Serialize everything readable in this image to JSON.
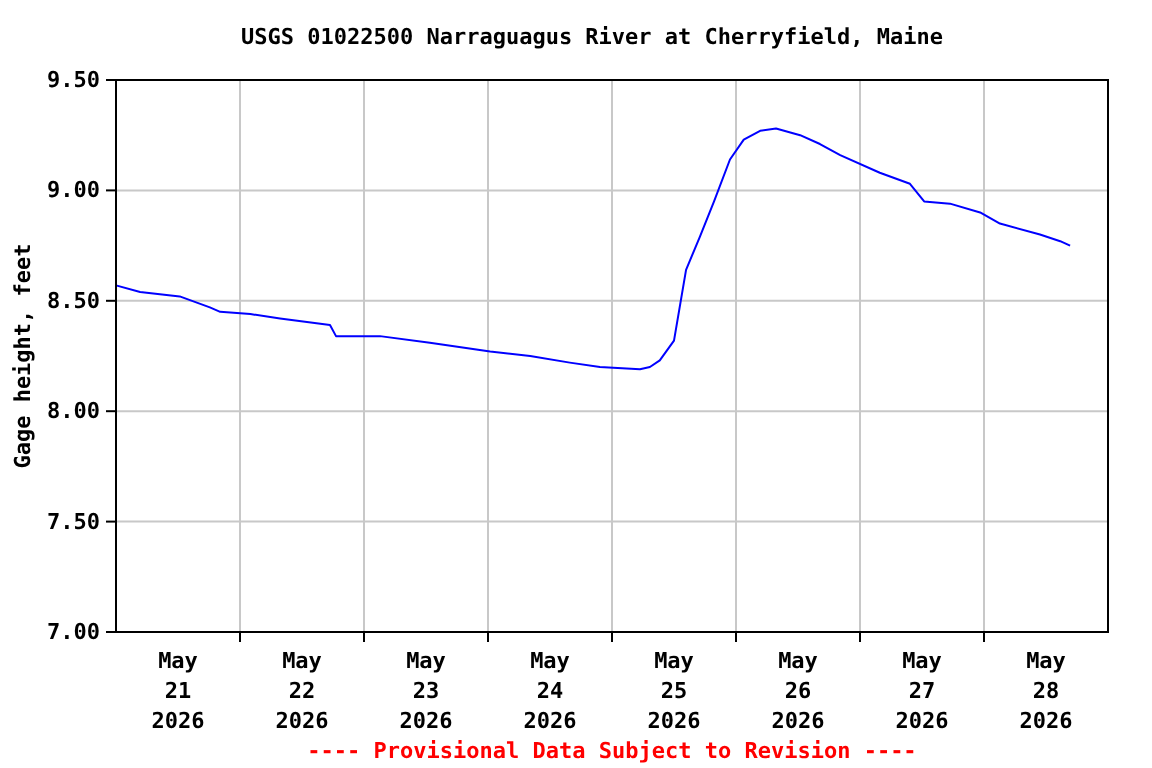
{
  "chart_data": {
    "type": "line",
    "title": "USGS 01022500 Narraguagus River at Cherryfield, Maine",
    "ylabel": "Gage height, feet",
    "annotations": [
      "---- Provisional Data Subject to Revision ----"
    ],
    "x": [
      "2026-05-21T00:00",
      "2026-05-21T04:40",
      "2026-05-21T12:20",
      "2026-05-21T18:10",
      "2026-05-21T20:10",
      "2026-05-22T02:00",
      "2026-05-22T07:45",
      "2026-05-22T17:25",
      "2026-05-22T18:35",
      "2026-05-23T03:05",
      "2026-05-23T12:45",
      "2026-05-24T00:25",
      "2026-05-24T08:10",
      "2026-05-24T15:50",
      "2026-05-24T21:40",
      "2026-05-25T05:25",
      "2026-05-25T07:20",
      "2026-05-25T09:15",
      "2026-05-25T12:00",
      "2026-05-25T14:20",
      "2026-05-25T17:00",
      "2026-05-25T19:45",
      "2026-05-25T22:50",
      "2026-05-26T01:30",
      "2026-05-26T04:40",
      "2026-05-26T07:45",
      "2026-05-26T12:25",
      "2026-05-26T16:15",
      "2026-05-26T20:10",
      "2026-05-27T03:50",
      "2026-05-27T09:40",
      "2026-05-27T12:25",
      "2026-05-27T17:25",
      "2026-05-27T23:15",
      "2026-05-28T03:05",
      "2026-05-28T10:50",
      "2026-05-28T14:45",
      "2026-05-28T16:40"
    ],
    "series": [
      {
        "color": "#0000ff",
        "values": [
          8.57,
          8.54,
          8.52,
          8.47,
          8.45,
          8.44,
          8.42,
          8.39,
          8.34,
          8.34,
          8.31,
          8.27,
          8.25,
          8.22,
          8.2,
          8.19,
          8.2,
          8.23,
          8.32,
          8.64,
          8.79,
          8.95,
          9.14,
          9.23,
          9.27,
          9.28,
          9.25,
          9.21,
          9.16,
          9.08,
          9.03,
          8.95,
          8.94,
          8.9,
          8.85,
          8.8,
          8.77,
          8.75
        ]
      }
    ],
    "xlim": [
      "2026-05-21T00:00",
      "2026-05-29T00:00"
    ],
    "xticks": [
      {
        "value": "2026-05-21T12:00",
        "label": "May\n21\n2026"
      },
      {
        "value": "2026-05-22T00:00",
        "label": null
      },
      {
        "value": "2026-05-22T12:00",
        "label": "May\n22\n2026"
      },
      {
        "value": "2026-05-23T00:00",
        "label": null
      },
      {
        "value": "2026-05-23T12:00",
        "label": "May\n23\n2026"
      },
      {
        "value": "2026-05-24T00:00",
        "label": null
      },
      {
        "value": "2026-05-24T12:00",
        "label": "May\n24\n2026"
      },
      {
        "value": "2026-05-25T00:00",
        "label": null
      },
      {
        "value": "2026-05-25T12:00",
        "label": "May\n25\n2026"
      },
      {
        "value": "2026-05-26T00:00",
        "label": null
      },
      {
        "value": "2026-05-26T12:00",
        "label": "May\n26\n2026"
      },
      {
        "value": "2026-05-27T00:00",
        "label": null
      },
      {
        "value": "2026-05-27T12:00",
        "label": "May\n27\n2026"
      },
      {
        "value": "2026-05-28T00:00",
        "label": null
      },
      {
        "value": "2026-05-28T12:00",
        "label": "May\n28\n2026"
      }
    ],
    "ylim": [
      7.0,
      9.5
    ],
    "yticks": [
      {
        "value": 7.0,
        "label": "7.00"
      },
      {
        "value": 7.5,
        "label": "7.50"
      },
      {
        "value": 8.0,
        "label": "8.00"
      },
      {
        "value": 8.5,
        "label": "8.50"
      },
      {
        "value": 9.0,
        "label": "9.00"
      },
      {
        "value": 9.5,
        "label": "9.50"
      }
    ],
    "grid": true,
    "marker": "none",
    "line_style": "solid"
  }
}
